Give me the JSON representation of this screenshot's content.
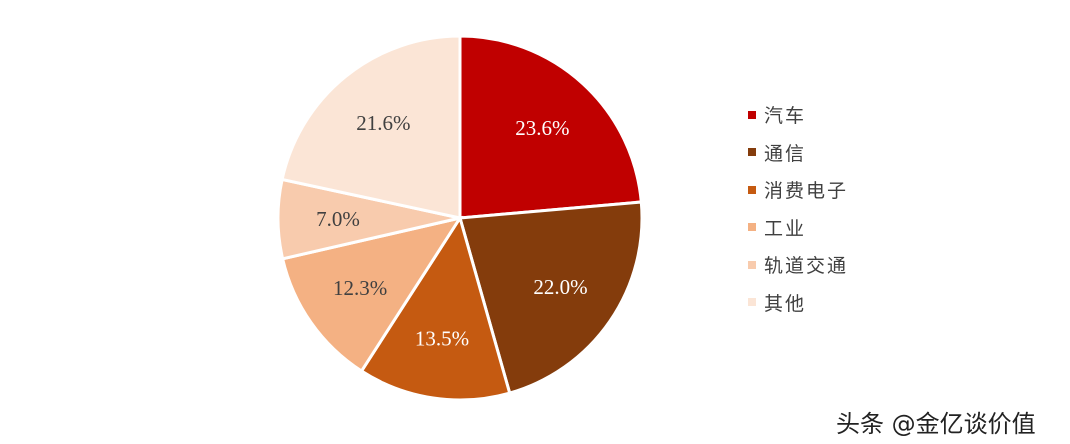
{
  "chart_data": {
    "type": "pie",
    "title": "",
    "categories": [
      "汽车",
      "通信",
      "消费电子",
      "工业",
      "轨道交通",
      "其他"
    ],
    "values": [
      23.6,
      22.0,
      13.5,
      12.3,
      7.0,
      21.6
    ],
    "labels": [
      "23.6%",
      "22.0%",
      "13.5%",
      "12.3%",
      "7.0%",
      "21.6%"
    ],
    "colors": [
      "#C00000",
      "#843C0C",
      "#C55A11",
      "#F4B183",
      "#F8CBAD",
      "#FBE5D6"
    ],
    "label_colors": [
      "#ffffff",
      "#ffffff",
      "#ffffff",
      "#404040",
      "#404040",
      "#404040"
    ],
    "start_angle": "12 o'clock, clockwise",
    "legend_position": "right"
  },
  "legend": {
    "items": [
      {
        "label": "汽车",
        "color": "#C00000"
      },
      {
        "label": "通信",
        "color": "#843C0C"
      },
      {
        "label": "消费电子",
        "color": "#C55A11"
      },
      {
        "label": "工业",
        "color": "#F4B183"
      },
      {
        "label": "轨道交通",
        "color": "#F8CBAD"
      },
      {
        "label": "其他",
        "color": "#FBE5D6"
      }
    ]
  },
  "watermark": "头条 @金亿谈价值"
}
